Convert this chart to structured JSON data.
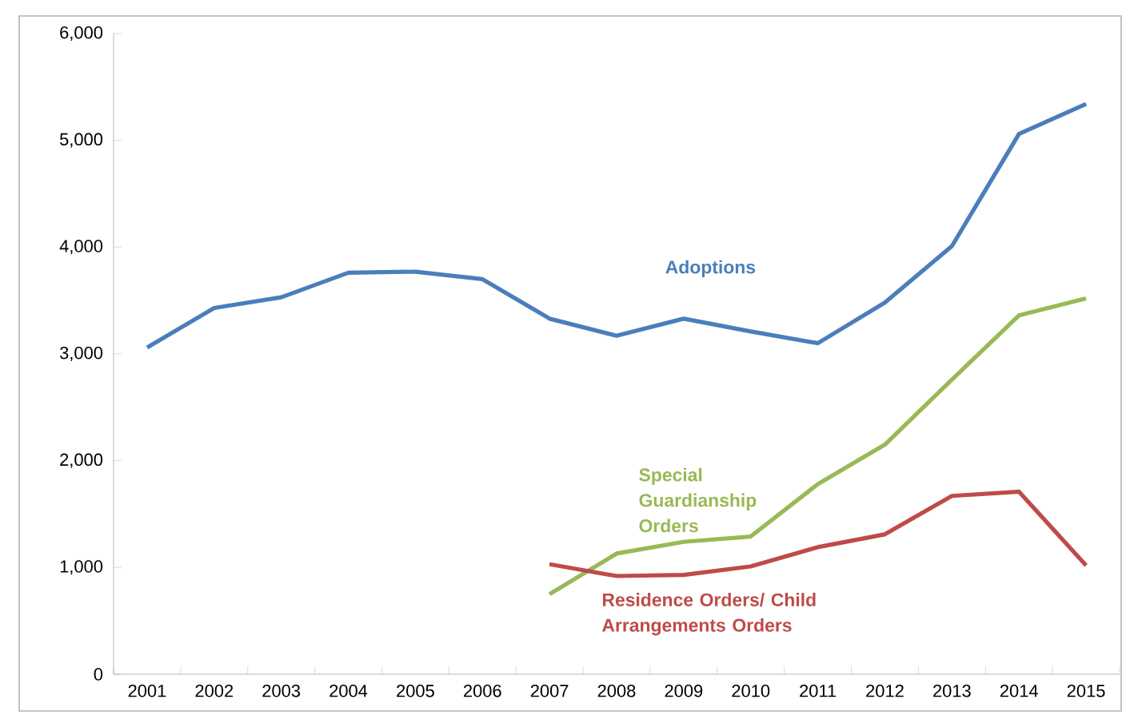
{
  "chart_data": {
    "type": "line",
    "categories": [
      "2001",
      "2002",
      "2003",
      "2004",
      "2005",
      "2006",
      "2007",
      "2008",
      "2009",
      "2010",
      "2011",
      "2012",
      "2013",
      "2014",
      "2015"
    ],
    "series": [
      {
        "name": "Adoptions",
        "color": "#4a7ebb",
        "values": [
          3060,
          3430,
          3530,
          3760,
          3770,
          3700,
          3330,
          3170,
          3330,
          3210,
          3100,
          3480,
          4010,
          5060,
          5340
        ]
      },
      {
        "name": "Special Guardianship Orders",
        "color": "#98b954",
        "values": [
          null,
          null,
          null,
          null,
          null,
          null,
          750,
          1130,
          1240,
          1290,
          1780,
          2150,
          2760,
          3360,
          3520
        ]
      },
      {
        "name": "Residence Orders/ Child Arrangements Orders",
        "color": "#be4b48",
        "values": [
          null,
          null,
          null,
          null,
          null,
          null,
          1030,
          920,
          930,
          1010,
          1190,
          1310,
          1670,
          1710,
          1020
        ]
      }
    ],
    "ylim": [
      0,
      6000
    ],
    "yticks": [
      {
        "value": 0,
        "label": "0"
      },
      {
        "value": 1000,
        "label": "1,000"
      },
      {
        "value": 2000,
        "label": "2,000"
      },
      {
        "value": 3000,
        "label": "3,000"
      },
      {
        "value": 4000,
        "label": "4,000"
      },
      {
        "value": 5000,
        "label": "5,000"
      },
      {
        "value": 6000,
        "label": "6,000"
      }
    ],
    "grid": false,
    "legend": false,
    "marker": "none",
    "line_style": "solid"
  }
}
